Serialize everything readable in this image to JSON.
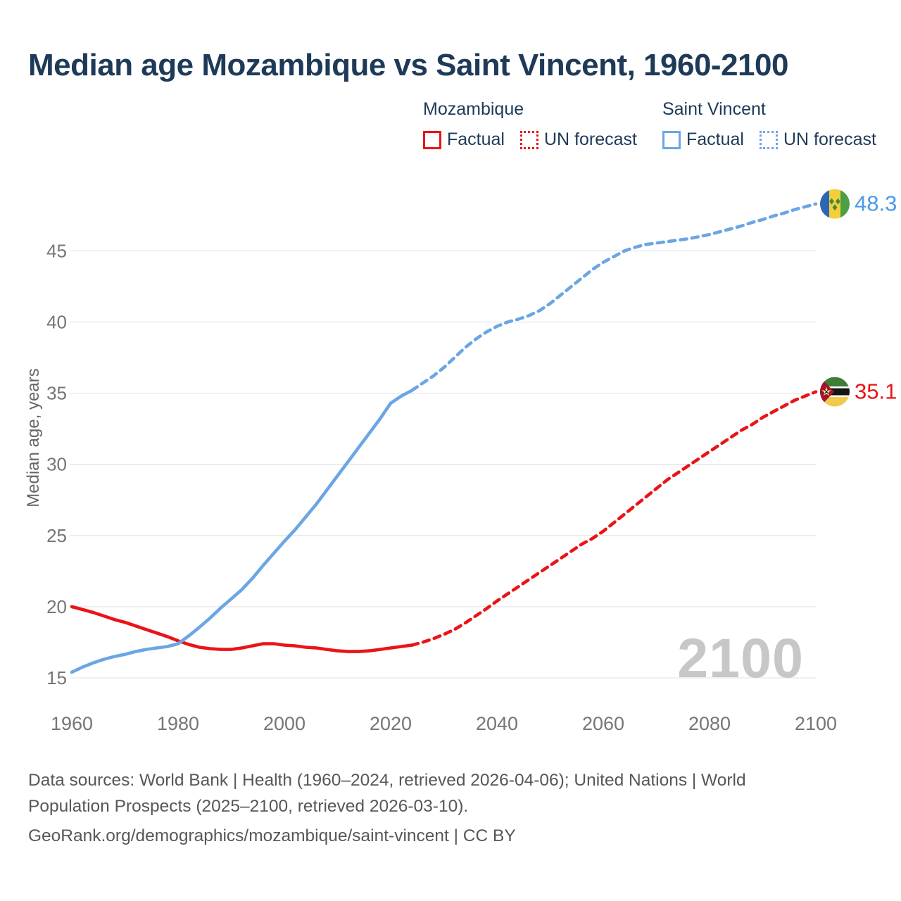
{
  "title": "Median age Mozambique vs Saint Vincent, 1960-2100",
  "legend": {
    "groups": [
      {
        "name": "Mozambique",
        "color": "#ea1417",
        "items": [
          {
            "label": "Factual",
            "style": "solid"
          },
          {
            "label": "UN forecast",
            "style": "dotted"
          }
        ]
      },
      {
        "name": "Saint Vincent",
        "color": "#6ba6e4",
        "items": [
          {
            "label": "Factual",
            "style": "solid"
          },
          {
            "label": "UN forecast",
            "style": "dotted"
          }
        ]
      }
    ]
  },
  "chart_data": {
    "type": "line",
    "title": "Median age Mozambique vs Saint Vincent, 1960-2100",
    "xlabel": "",
    "ylabel": "Median age, years",
    "x_ticks": [
      1960,
      1980,
      2000,
      2020,
      2040,
      2060,
      2080,
      2100
    ],
    "y_ticks": [
      15,
      20,
      25,
      30,
      35,
      40,
      45
    ],
    "xlim": [
      1960,
      2100
    ],
    "ylim": [
      15,
      48.3
    ],
    "grid": "horizontal",
    "legend_position": "top-right",
    "watermark": "2100",
    "axis_color": "#767676",
    "grid_color": "#e7e7e7",
    "watermark_color": "#c7c7c7",
    "series": [
      {
        "name": "Mozambique Factual",
        "color": "#ea1417",
        "dashed": false,
        "points": [
          [
            1960,
            20.0
          ],
          [
            1962,
            19.8
          ],
          [
            1964,
            19.6
          ],
          [
            1966,
            19.35
          ],
          [
            1968,
            19.1
          ],
          [
            1970,
            18.9
          ],
          [
            1972,
            18.65
          ],
          [
            1974,
            18.4
          ],
          [
            1976,
            18.15
          ],
          [
            1978,
            17.9
          ],
          [
            1980,
            17.6
          ],
          [
            1982,
            17.35
          ],
          [
            1984,
            17.15
          ],
          [
            1986,
            17.05
          ],
          [
            1988,
            17.0
          ],
          [
            1990,
            17.0
          ],
          [
            1992,
            17.1
          ],
          [
            1994,
            17.25
          ],
          [
            1996,
            17.4
          ],
          [
            1998,
            17.4
          ],
          [
            2000,
            17.3
          ],
          [
            2002,
            17.25
          ],
          [
            2004,
            17.15
          ],
          [
            2006,
            17.1
          ],
          [
            2008,
            17.0
          ],
          [
            2010,
            16.9
          ],
          [
            2012,
            16.85
          ],
          [
            2014,
            16.85
          ],
          [
            2016,
            16.9
          ],
          [
            2018,
            17.0
          ],
          [
            2020,
            17.1
          ],
          [
            2022,
            17.2
          ],
          [
            2024,
            17.3
          ]
        ]
      },
      {
        "name": "Mozambique UN forecast",
        "color": "#ea1417",
        "dashed": true,
        "points": [
          [
            2024,
            17.3
          ],
          [
            2026,
            17.5
          ],
          [
            2028,
            17.75
          ],
          [
            2030,
            18.05
          ],
          [
            2032,
            18.4
          ],
          [
            2034,
            18.85
          ],
          [
            2036,
            19.35
          ],
          [
            2038,
            19.85
          ],
          [
            2040,
            20.4
          ],
          [
            2042,
            20.9
          ],
          [
            2044,
            21.4
          ],
          [
            2046,
            21.9
          ],
          [
            2048,
            22.4
          ],
          [
            2050,
            22.9
          ],
          [
            2052,
            23.4
          ],
          [
            2054,
            23.9
          ],
          [
            2056,
            24.4
          ],
          [
            2058,
            24.8
          ],
          [
            2060,
            25.3
          ],
          [
            2062,
            25.9
          ],
          [
            2064,
            26.5
          ],
          [
            2066,
            27.1
          ],
          [
            2068,
            27.7
          ],
          [
            2070,
            28.3
          ],
          [
            2072,
            28.9
          ],
          [
            2074,
            29.4
          ],
          [
            2076,
            29.9
          ],
          [
            2078,
            30.4
          ],
          [
            2080,
            30.9
          ],
          [
            2082,
            31.4
          ],
          [
            2084,
            31.9
          ],
          [
            2086,
            32.4
          ],
          [
            2088,
            32.8
          ],
          [
            2090,
            33.3
          ],
          [
            2092,
            33.7
          ],
          [
            2094,
            34.1
          ],
          [
            2096,
            34.5
          ],
          [
            2098,
            34.8
          ],
          [
            2100,
            35.1
          ]
        ]
      },
      {
        "name": "Saint Vincent Factual",
        "color": "#6ba6e4",
        "dashed": false,
        "points": [
          [
            1960,
            15.4
          ],
          [
            1962,
            15.75
          ],
          [
            1964,
            16.05
          ],
          [
            1966,
            16.3
          ],
          [
            1968,
            16.5
          ],
          [
            1970,
            16.65
          ],
          [
            1972,
            16.85
          ],
          [
            1974,
            17.0
          ],
          [
            1976,
            17.1
          ],
          [
            1978,
            17.2
          ],
          [
            1980,
            17.4
          ],
          [
            1982,
            17.95
          ],
          [
            1984,
            18.55
          ],
          [
            1986,
            19.2
          ],
          [
            1988,
            19.9
          ],
          [
            1990,
            20.55
          ],
          [
            1992,
            21.2
          ],
          [
            1994,
            22.0
          ],
          [
            1996,
            22.9
          ],
          [
            1998,
            23.75
          ],
          [
            2000,
            24.6
          ],
          [
            2002,
            25.4
          ],
          [
            2004,
            26.3
          ],
          [
            2006,
            27.2
          ],
          [
            2008,
            28.2
          ],
          [
            2010,
            29.2
          ],
          [
            2012,
            30.2
          ],
          [
            2014,
            31.2
          ],
          [
            2016,
            32.2
          ],
          [
            2018,
            33.2
          ],
          [
            2020,
            34.3
          ],
          [
            2022,
            34.8
          ],
          [
            2024,
            35.2
          ]
        ]
      },
      {
        "name": "Saint Vincent UN forecast",
        "color": "#6ba6e4",
        "dashed": true,
        "points": [
          [
            2024,
            35.2
          ],
          [
            2026,
            35.7
          ],
          [
            2028,
            36.2
          ],
          [
            2030,
            36.8
          ],
          [
            2032,
            37.5
          ],
          [
            2034,
            38.2
          ],
          [
            2036,
            38.8
          ],
          [
            2038,
            39.3
          ],
          [
            2040,
            39.7
          ],
          [
            2042,
            40.0
          ],
          [
            2044,
            40.2
          ],
          [
            2046,
            40.45
          ],
          [
            2048,
            40.8
          ],
          [
            2050,
            41.3
          ],
          [
            2052,
            41.9
          ],
          [
            2054,
            42.5
          ],
          [
            2056,
            43.1
          ],
          [
            2058,
            43.7
          ],
          [
            2060,
            44.2
          ],
          [
            2062,
            44.6
          ],
          [
            2064,
            45.0
          ],
          [
            2066,
            45.25
          ],
          [
            2068,
            45.45
          ],
          [
            2070,
            45.55
          ],
          [
            2072,
            45.65
          ],
          [
            2074,
            45.75
          ],
          [
            2076,
            45.85
          ],
          [
            2078,
            46.0
          ],
          [
            2080,
            46.15
          ],
          [
            2082,
            46.35
          ],
          [
            2084,
            46.55
          ],
          [
            2086,
            46.75
          ],
          [
            2088,
            47.0
          ],
          [
            2090,
            47.2
          ],
          [
            2092,
            47.45
          ],
          [
            2094,
            47.65
          ],
          [
            2096,
            47.9
          ],
          [
            2098,
            48.1
          ],
          [
            2100,
            48.3
          ]
        ]
      }
    ],
    "end_labels": [
      {
        "series": "Saint Vincent UN forecast",
        "flag": "saint-vincent",
        "value": 48.3,
        "text": "48.3",
        "text_color": "#4e9ae6"
      },
      {
        "series": "Mozambique UN forecast",
        "flag": "mozambique",
        "value": 35.1,
        "text": "35.1",
        "text_color": "#ea1417"
      }
    ]
  },
  "footer": {
    "lines": [
      "Data sources: World Bank | Health (1960–2024, retrieved 2026-04-06); United Nations | World",
      "Population Prospects (2025–2100, retrieved 2026-03-10).",
      "GeoRank.org/demographics/mozambique/saint-vincent | CC BY"
    ]
  }
}
